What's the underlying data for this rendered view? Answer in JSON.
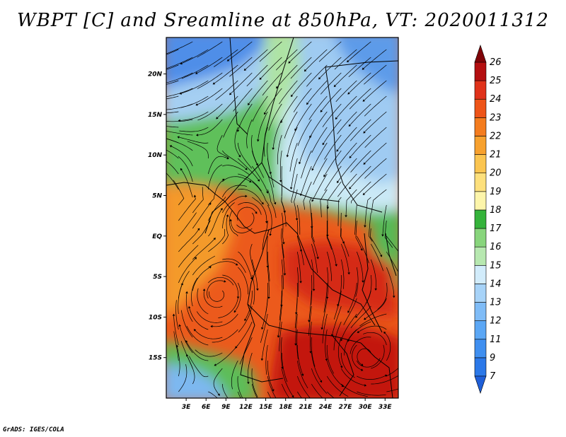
{
  "title": "WBPT [C] and Sreamline at 850hPa, VT: 2020011312",
  "credit": "GrADS: IGES/COLA",
  "map": {
    "variable": "Wet-bulb potential temperature",
    "units": "C",
    "level": "850hPa",
    "valid_time": "2020011312",
    "lat_labels": [
      "20N",
      "15N",
      "10N",
      "5N",
      "EQ",
      "5S",
      "10S",
      "15S"
    ],
    "lon_labels": [
      "3E",
      "6E",
      "9E",
      "12E",
      "15E",
      "18E",
      "21E",
      "24E",
      "27E",
      "30E",
      "33E"
    ],
    "lat_values": [
      20,
      15,
      10,
      5,
      0,
      -5,
      -10,
      -15
    ],
    "lon_values": [
      3,
      6,
      9,
      12,
      15,
      18,
      21,
      24,
      27,
      30,
      33
    ],
    "lat_range": [
      -20,
      24.5
    ],
    "lon_range": [
      0,
      35
    ]
  },
  "colorbar": {
    "levels": [
      "7",
      "9",
      "11",
      "12",
      "13",
      "14",
      "15",
      "16",
      "17",
      "18",
      "19",
      "20",
      "21",
      "22",
      "23",
      "24",
      "25",
      "26"
    ],
    "colors": [
      "#1f5fd8",
      "#2b78e8",
      "#3f8ff0",
      "#5ba7f5",
      "#7fbcf7",
      "#a7d3f8",
      "#d2ecfb",
      "#b7e8b0",
      "#88d57c",
      "#35b33b",
      "#fdf5aa",
      "#fde07c",
      "#fbc550",
      "#f7a12e",
      "#f47c1e",
      "#ee5418",
      "#e0321a",
      "#b40f10",
      "#7f0408"
    ]
  },
  "colors": {
    "warm": "#e9531d",
    "hot": "#c21410",
    "orange": "#f3a135",
    "green": "#62c058",
    "lightgreen": "#a9e3a0",
    "paleblue": "#cde9f7",
    "blue": "#6fa6e8",
    "deepblue": "#2f6ce0"
  }
}
